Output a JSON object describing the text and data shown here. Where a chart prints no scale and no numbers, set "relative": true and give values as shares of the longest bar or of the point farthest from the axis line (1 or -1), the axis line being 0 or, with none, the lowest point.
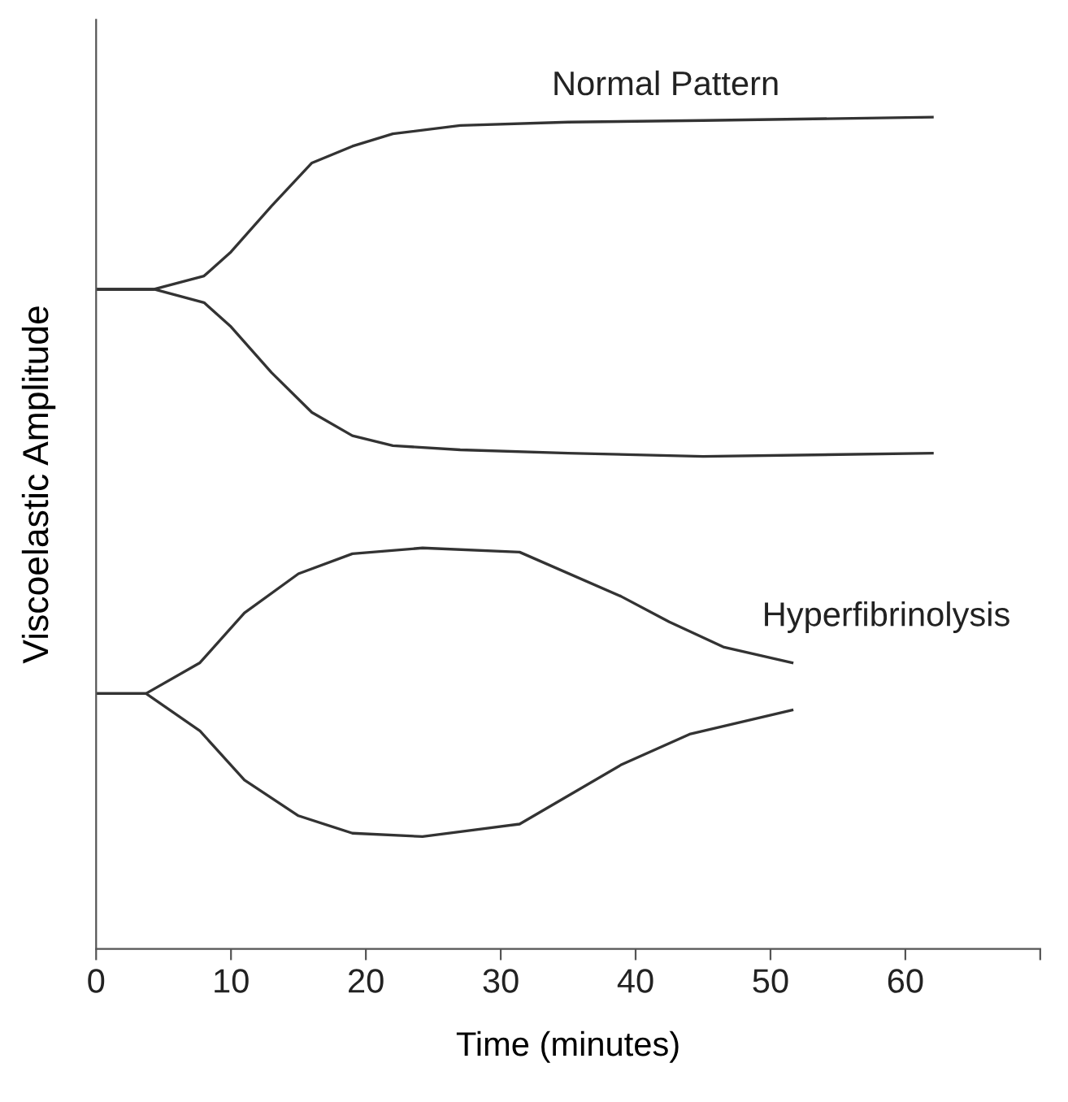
{
  "chart_data": {
    "type": "line",
    "relative": true,
    "xlabel": "Time (minutes)",
    "ylabel": "Viscoelastic Amplitude",
    "xlim": [
      0,
      70
    ],
    "xticks": [
      0,
      10,
      20,
      30,
      40,
      50,
      60,
      {
        "value": 70,
        "label": null
      }
    ],
    "tick_labels": "x",
    "grid": false,
    "marker": "none",
    "line_style": "solid",
    "series": [
      {
        "name": "Normal Pattern",
        "color": "#333333",
        "x": [
          0,
          4.3,
          8,
          10,
          13,
          16,
          19,
          22,
          27,
          35,
          45,
          62
        ],
        "values": [
          0.793,
          0.793,
          0.809,
          0.838,
          0.893,
          0.945,
          0.965,
          0.98,
          0.99,
          0.994,
          0.996,
          1
        ]
      },
      {
        "color": "#333333",
        "x": [
          0,
          4.3,
          8,
          10,
          13,
          16,
          19,
          22,
          27,
          35,
          45,
          62
        ],
        "values": [
          0.793,
          0.793,
          0.777,
          0.748,
          0.693,
          0.645,
          0.617,
          0.605,
          0.6,
          0.596,
          0.592,
          0.596
        ]
      },
      {
        "name": "Hyperfibrinolysis",
        "color": "#333333",
        "x": [
          0,
          3.7,
          7.7,
          11,
          15,
          19,
          24.2,
          31.4,
          38.9,
          42.5,
          46.5,
          51.6
        ],
        "values": [
          0.307,
          0.307,
          0.344,
          0.404,
          0.451,
          0.475,
          0.482,
          0.477,
          0.424,
          0.393,
          0.363,
          0.344
        ]
      },
      {
        "color": "#333333",
        "x": [
          0,
          3.7,
          7.7,
          11,
          15,
          19,
          24.2,
          31.4,
          38.9,
          44,
          51.6
        ],
        "values": [
          0.307,
          0.307,
          0.262,
          0.203,
          0.16,
          0.139,
          0.135,
          0.15,
          0.221,
          0.258,
          0.287
        ]
      }
    ]
  }
}
